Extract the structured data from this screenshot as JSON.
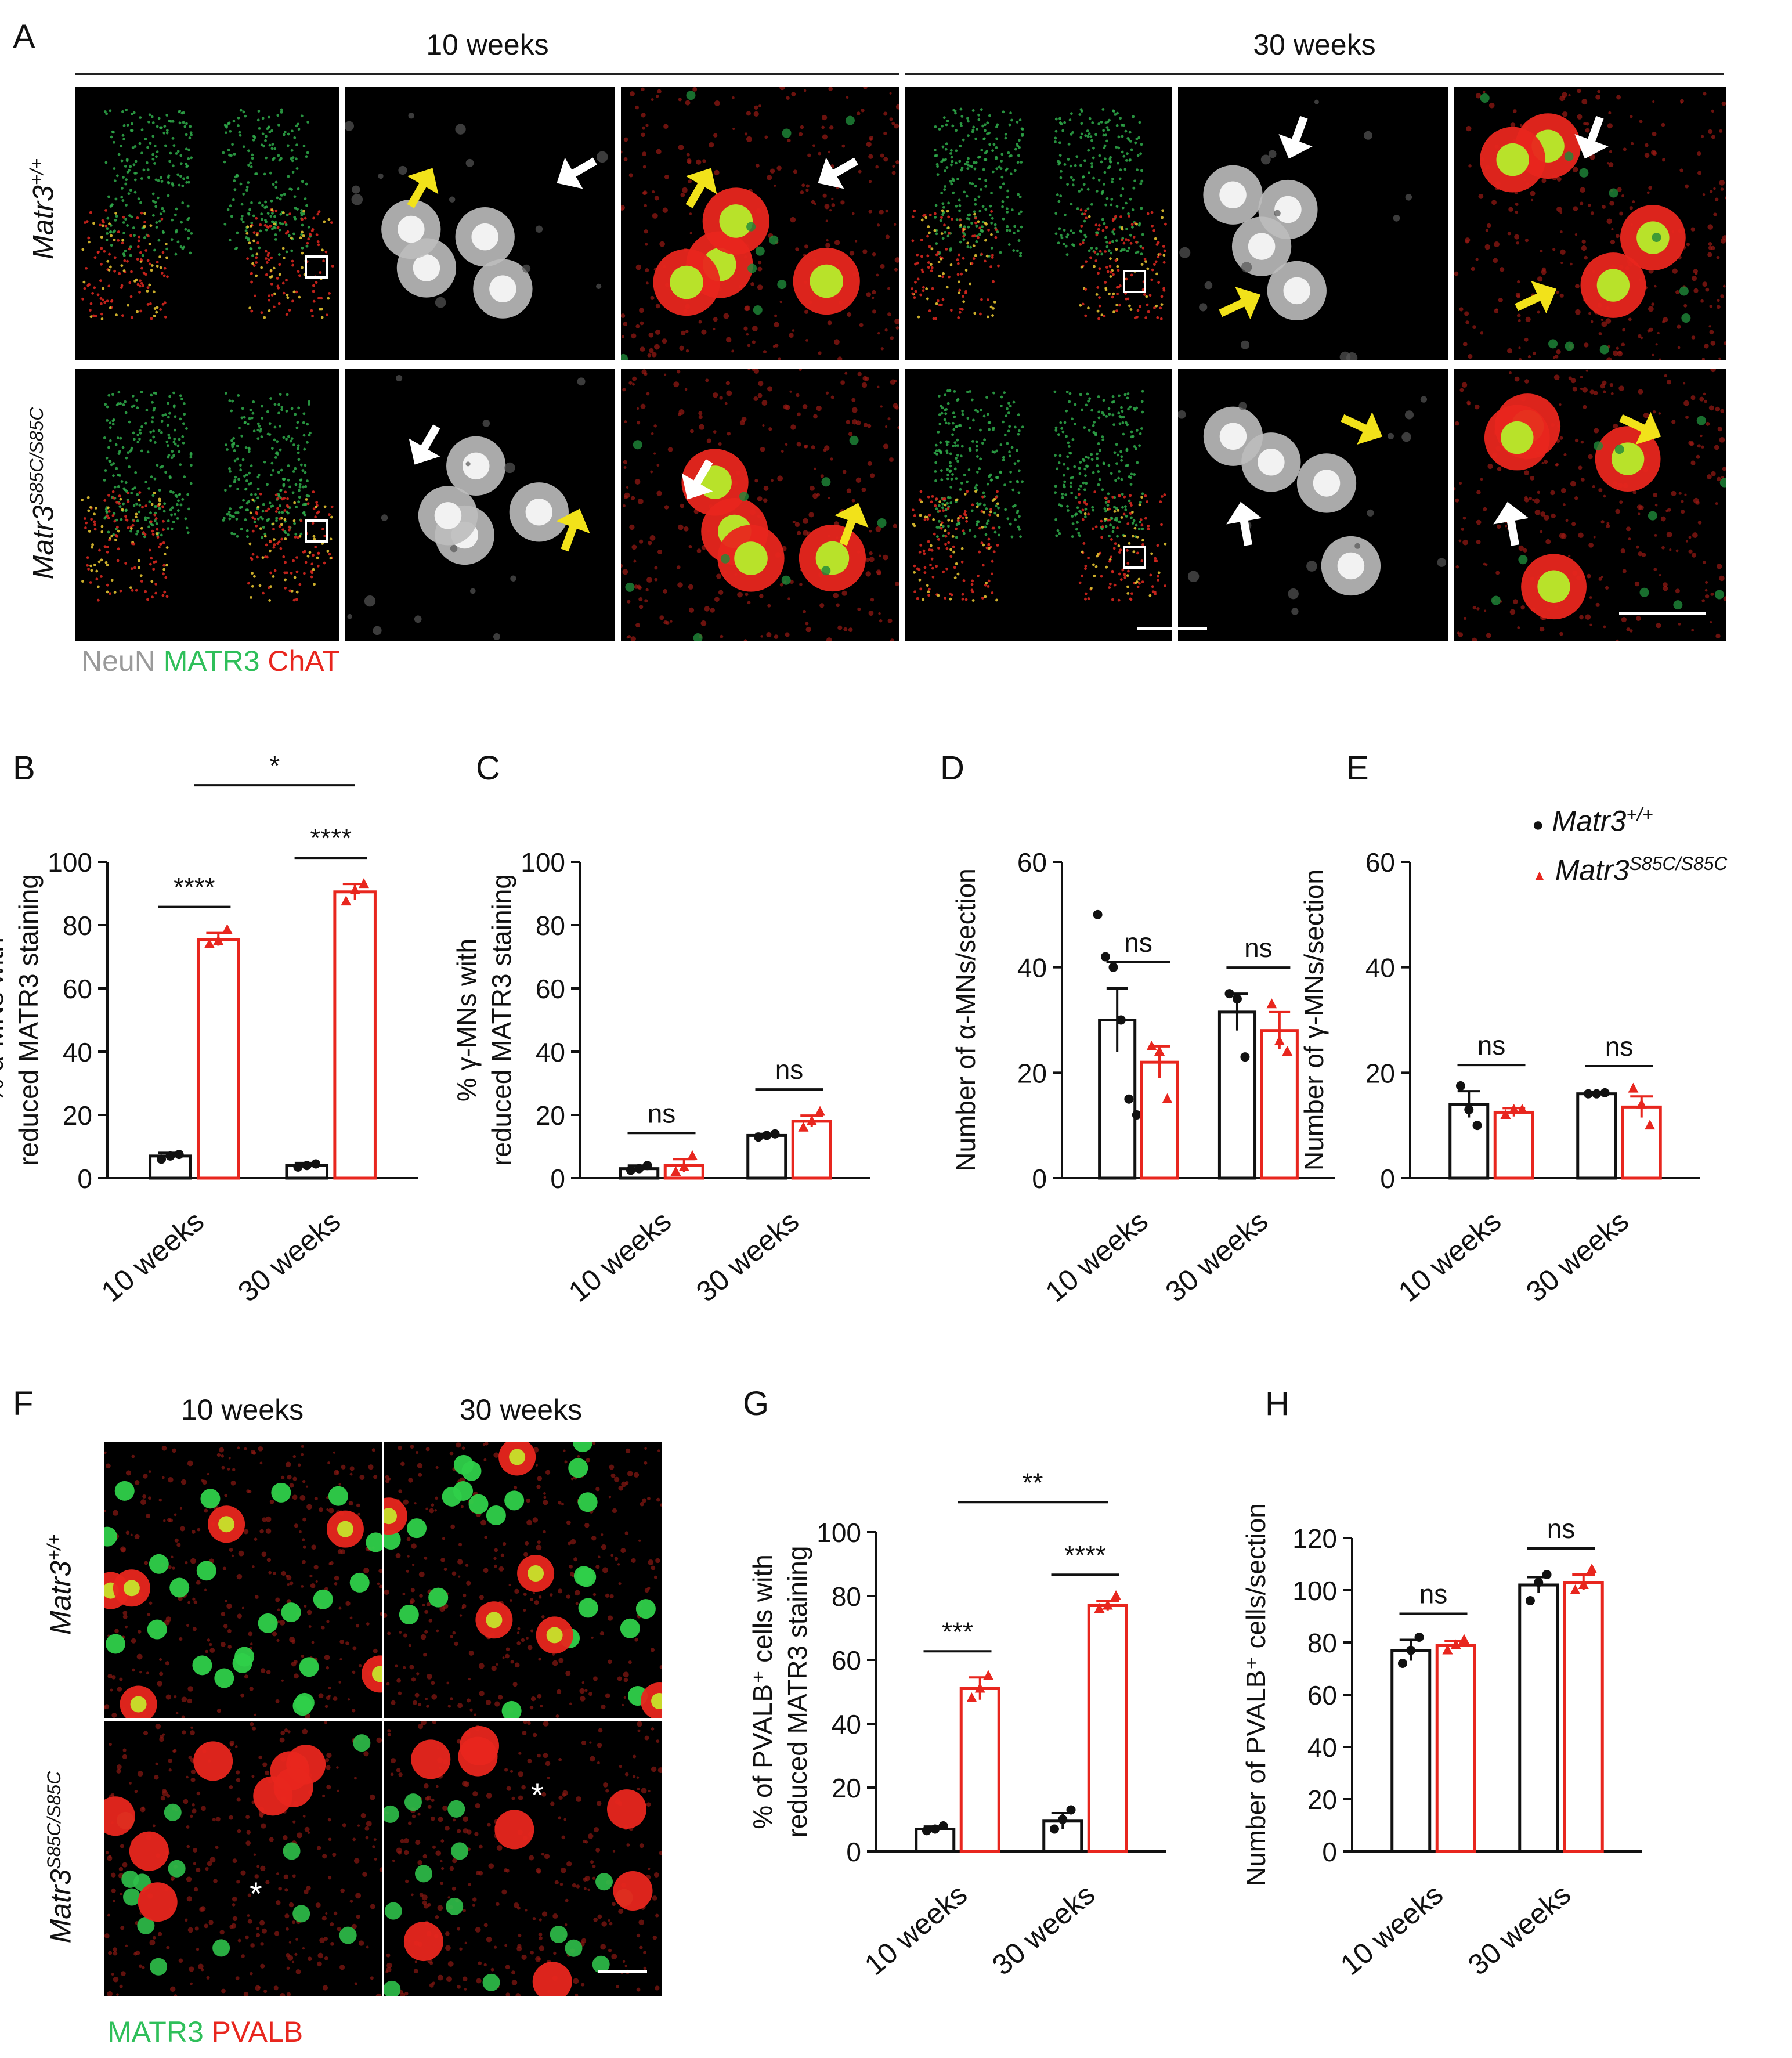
{
  "panel_letters": [
    "A",
    "B",
    "C",
    "D",
    "E",
    "F",
    "G",
    "H"
  ],
  "panelA": {
    "headers": [
      "10 weeks",
      "30 weeks"
    ],
    "row_labels": [
      {
        "base": "Matr3",
        "sup": "+/+"
      },
      {
        "base": "Matr3",
        "sup": "S85C/S85C"
      }
    ],
    "stain_legend": [
      {
        "text": "NeuN",
        "color": "#9a9a9a"
      },
      {
        "text": "MATR3",
        "color": "#2fbf5a"
      },
      {
        "text": "ChAT",
        "color": "#e8261e"
      }
    ]
  },
  "panelF": {
    "headers": [
      "10 weeks",
      "30 weeks"
    ],
    "row_labels": [
      {
        "base": "Matr3",
        "sup": "+/+"
      },
      {
        "base": "Matr3",
        "sup": "S85C/S85C"
      }
    ],
    "stain_legend": [
      {
        "text": "MATR3",
        "color": "#2fbf5a"
      },
      {
        "text": "PVALB",
        "color": "#e8261e"
      }
    ],
    "asterisk": "*"
  },
  "legend": [
    {
      "marker": "●",
      "base": "Matr3",
      "sup": "+/+",
      "color": "#111111"
    },
    {
      "marker": "▲",
      "base": "Matr3",
      "sup": "S85C/S85C",
      "color": "#e8261e"
    }
  ],
  "colors": {
    "wt": "#111111",
    "mut": "#e8261e"
  },
  "chart_data": [
    {
      "id": "B",
      "type": "bar",
      "ylabel": [
        "% α-MNs with",
        "reduced MATR3 staining"
      ],
      "ylim": [
        0,
        100
      ],
      "yticks": [
        0,
        20,
        40,
        60,
        80,
        100
      ],
      "categories": [
        "10 weeks",
        "30 weeks"
      ],
      "series": [
        {
          "values": [
            7,
            4
          ],
          "err": [
            1,
            0.8
          ],
          "points": [
            [
              6,
              7,
              7.5
            ],
            [
              3.5,
              4,
              4.5
            ]
          ]
        },
        {
          "values": [
            75.5,
            90.5
          ],
          "err": [
            2,
            2.5
          ],
          "points": [
            [
              74,
              75,
              78.5
            ],
            [
              87.5,
              91,
              93
            ]
          ]
        }
      ],
      "annotations": [
        {
          "text": "****",
          "type": "pair",
          "group": 0
        },
        {
          "text": "****",
          "type": "pair",
          "group": 1
        },
        {
          "text": "*",
          "type": "across"
        }
      ]
    },
    {
      "id": "C",
      "type": "bar",
      "ylabel": [
        "% γ-MNs with",
        "reduced MATR3 staining"
      ],
      "ylim": [
        0,
        100
      ],
      "yticks": [
        0,
        20,
        40,
        60,
        80,
        100
      ],
      "categories": [
        "10 weeks",
        "30 weeks"
      ],
      "series": [
        {
          "values": [
            3,
            13.5
          ],
          "err": [
            1,
            0.5
          ],
          "points": [
            [
              2.5,
              3,
              4
            ],
            [
              13,
              13.5,
              14
            ]
          ]
        },
        {
          "values": [
            4,
            18
          ],
          "err": [
            2,
            1.8
          ],
          "points": [
            [
              2,
              3.5,
              7
            ],
            [
              16,
              18,
              21
            ]
          ]
        }
      ],
      "annotations": [
        {
          "text": "ns",
          "type": "pair",
          "group": 0
        },
        {
          "text": "ns",
          "type": "pair",
          "group": 1
        }
      ]
    },
    {
      "id": "D",
      "type": "bar",
      "ylabel": [
        "Number of α-MNs/section"
      ],
      "ylim": [
        0,
        60
      ],
      "yticks": [
        0,
        20,
        40,
        60
      ],
      "categories": [
        "10 weeks",
        "30 weeks"
      ],
      "series": [
        {
          "values": [
            30,
            31.5
          ],
          "err": [
            6,
            3.5
          ],
          "points": [
            [
              50,
              42,
              40,
              30,
              15,
              12
            ],
            [
              35,
              34,
              23
            ]
          ]
        },
        {
          "values": [
            22,
            28
          ],
          "err": [
            3,
            3.5
          ],
          "points": [
            [
              25,
              24,
              15
            ],
            [
              33,
              26,
              24
            ]
          ]
        }
      ],
      "annotations": [
        {
          "text": "ns",
          "type": "pair",
          "group": 0
        },
        {
          "text": "ns",
          "type": "pair",
          "group": 1
        }
      ]
    },
    {
      "id": "E",
      "type": "bar",
      "ylabel": [
        "Number of γ-MNs/section"
      ],
      "ylim": [
        0,
        60
      ],
      "yticks": [
        0,
        20,
        40,
        60
      ],
      "categories": [
        "10 weeks",
        "30 weeks"
      ],
      "series": [
        {
          "values": [
            14,
            16
          ],
          "err": [
            2.5,
            0.3
          ],
          "points": [
            [
              17.5,
              13,
              10
            ],
            [
              16,
              16,
              16.2
            ]
          ]
        },
        {
          "values": [
            12.5,
            13.5
          ],
          "err": [
            0.8,
            2
          ],
          "points": [
            [
              12,
              13,
              13
            ],
            [
              17,
              14,
              10
            ]
          ]
        }
      ],
      "annotations": [
        {
          "text": "ns",
          "type": "pair",
          "group": 0
        },
        {
          "text": "ns",
          "type": "pair",
          "group": 1
        }
      ]
    },
    {
      "id": "G",
      "type": "bar",
      "ylabel": [
        "% of PVALB⁺ cells with",
        "reduced MATR3 staining"
      ],
      "ylim": [
        0,
        100
      ],
      "yticks": [
        0,
        20,
        40,
        60,
        80,
        100
      ],
      "categories": [
        "10 weeks",
        "30 weeks"
      ],
      "series": [
        {
          "values": [
            7,
            9.5
          ],
          "err": [
            0.8,
            2.5
          ],
          "points": [
            [
              6.5,
              7,
              8
            ],
            [
              7,
              10,
              13
            ]
          ]
        },
        {
          "values": [
            51,
            77
          ],
          "err": [
            3.5,
            1.5
          ],
          "points": [
            [
              48,
              51,
              55
            ],
            [
              76,
              77,
              80
            ]
          ]
        }
      ],
      "annotations": [
        {
          "text": "***",
          "type": "pair",
          "group": 0
        },
        {
          "text": "****",
          "type": "pair",
          "group": 1
        },
        {
          "text": "**",
          "type": "across"
        }
      ]
    },
    {
      "id": "H",
      "type": "bar",
      "ylabel": [
        "Number of PVALB⁺ cells/section"
      ],
      "ylim": [
        0,
        120
      ],
      "yticks": [
        0,
        20,
        40,
        60,
        80,
        100,
        120
      ],
      "categories": [
        "10 weeks",
        "30 weeks"
      ],
      "series": [
        {
          "values": [
            77,
            102
          ],
          "err": [
            4,
            3
          ],
          "points": [
            [
              72,
              77,
              82
            ],
            [
              96,
              103,
              106
            ]
          ]
        },
        {
          "values": [
            79,
            103
          ],
          "err": [
            1.5,
            3
          ],
          "points": [
            [
              77,
              79,
              81
            ],
            [
              100,
              102,
              108
            ]
          ]
        }
      ],
      "annotations": [
        {
          "text": "ns",
          "type": "pair",
          "group": 0
        },
        {
          "text": "ns",
          "type": "pair",
          "group": 1
        }
      ]
    }
  ]
}
